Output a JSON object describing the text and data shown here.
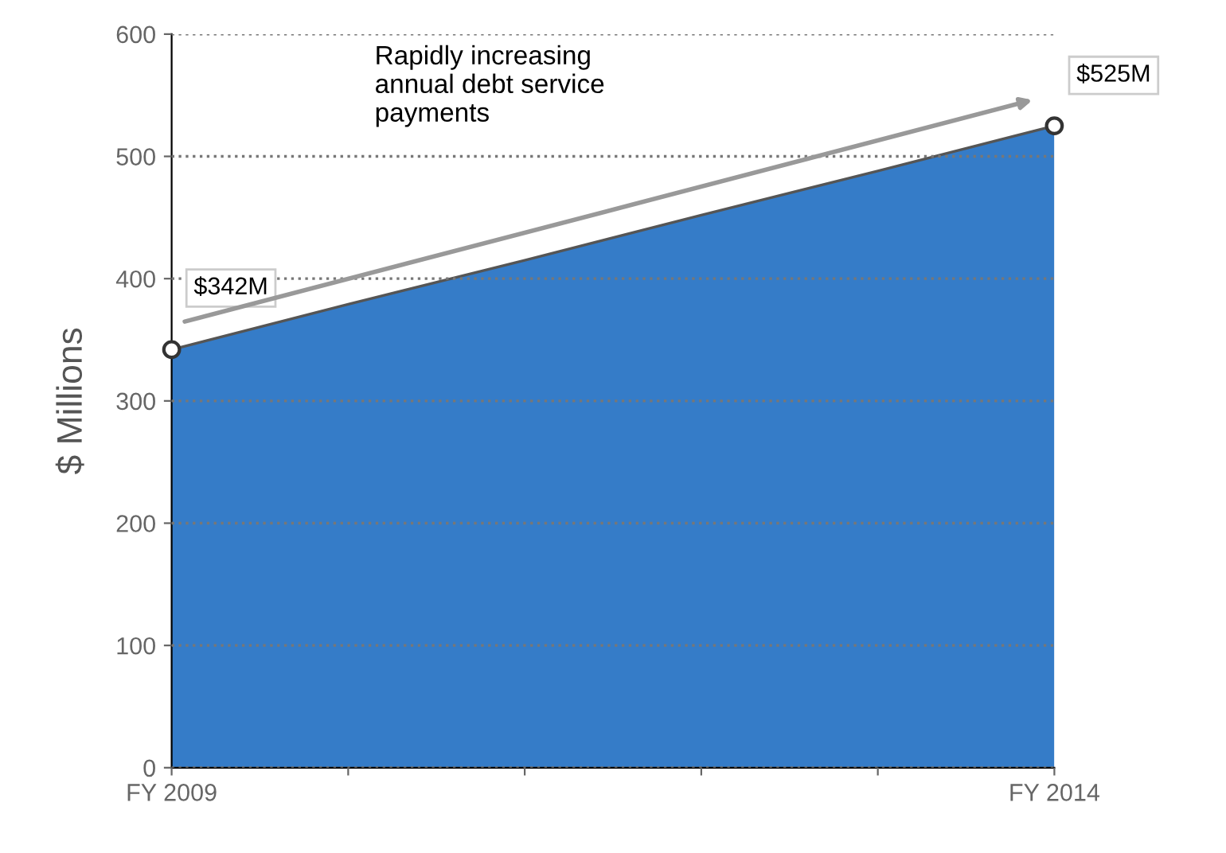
{
  "chart_data": {
    "type": "area",
    "ylabel": "$ Millions",
    "categories": [
      "FY 2009",
      null,
      null,
      null,
      null,
      "FY 2014"
    ],
    "series": [
      {
        "color": "#1f6ec2",
        "values": [
          342,
          379,
          415,
          452,
          488,
          525
        ]
      },
      {
        "type": "scatter",
        "color": "#333333",
        "marker": "circle",
        "values": [
          342,
          null,
          null,
          null,
          null,
          525
        ]
      }
    ],
    "ylim": [
      0,
      600
    ],
    "yticks": [
      0,
      100,
      200,
      300,
      400,
      500,
      600
    ],
    "grid": "y",
    "line_style": "dotted",
    "annotations": [
      {
        "text": "$342M",
        "x": "FY 2009",
        "y": 342
      },
      {
        "text": "$525M",
        "x": "FY 2014",
        "y": 525
      },
      "Rapidly increasing\nannual debt service\npayments"
    ]
  }
}
